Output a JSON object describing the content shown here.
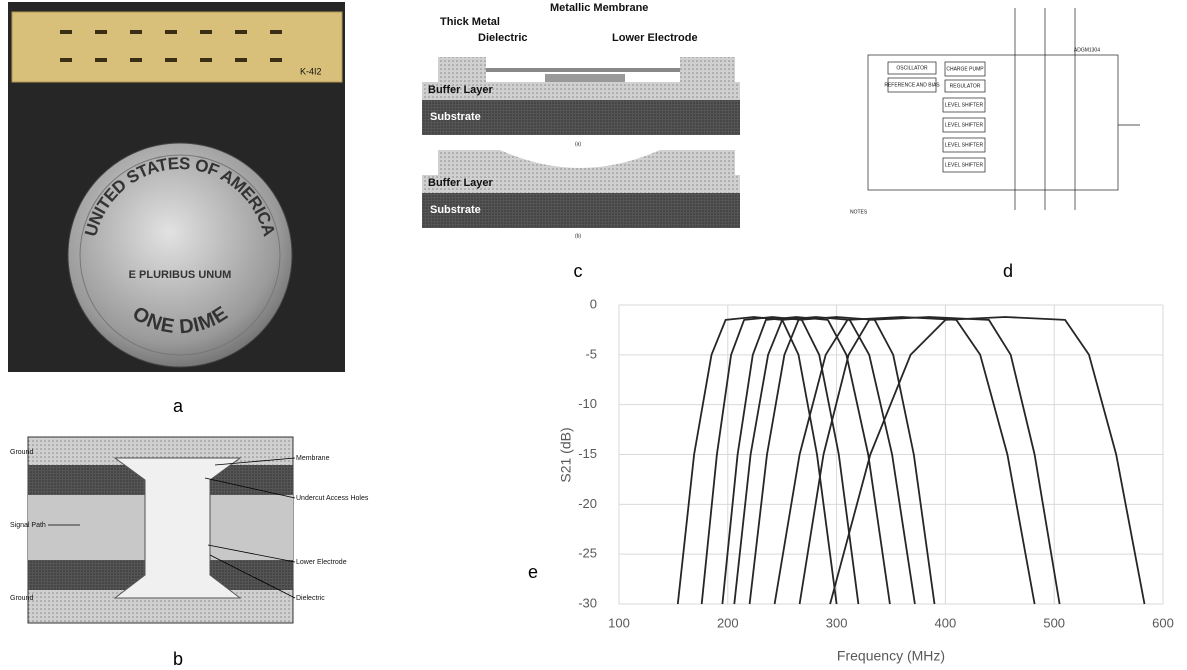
{
  "panels": {
    "a": {
      "label": "a",
      "chip_text": "K-4I2",
      "coin_top": "UNITED STATES OF AMERICA",
      "coin_motto": "E PLURIBUS UNUM",
      "coin_bottom": "ONE DIME"
    },
    "b": {
      "label": "b",
      "ground_top": "Ground",
      "signal_path": "Signal Path",
      "ground_bottom": "Ground",
      "membrane": "Membrane",
      "undercut": "Undercut Access Holes",
      "lower_electrode": "Lower Electrode",
      "dielectric": "Dielectric"
    },
    "c": {
      "label": "c",
      "thick_metal": "Thick Metal",
      "metallic_membrane": "Metallic Membrane",
      "dielectric": "Dielectric",
      "lower_electrode": "Lower Electrode",
      "buffer_a": "Buffer Layer",
      "substrate_a": "Substrate",
      "caption_a": "(a)",
      "buffer_b": "Buffer Layer",
      "substrate_b": "Substrate",
      "caption_b": "(b)"
    },
    "d": {
      "label": "d",
      "part": "ADGM1304",
      "oscillator": "OSCILLATOR",
      "charge_pump": "CHARGE PUMP",
      "reference": "REFERENCE AND BIAS",
      "regulator": "REGULATOR",
      "level_shifters": [
        "LEVEL SHIFTER",
        "LEVEL SHIFTER",
        "LEVEL SHIFTER",
        "LEVEL SHIFTER"
      ],
      "notes": "NOTES"
    },
    "e": {
      "label": "e"
    }
  },
  "chart_data": {
    "type": "line",
    "xlabel": "Frequency (MHz)",
    "ylabel": "S21 (dB)",
    "xlim": [
      100,
      600
    ],
    "ylim": [
      -30,
      0
    ],
    "xticks": [
      100,
      200,
      300,
      400,
      500,
      600
    ],
    "yticks": [
      0,
      -5,
      -10,
      -15,
      -20,
      -25,
      -30
    ],
    "grid": true,
    "series": [
      {
        "color": "#262626",
        "x": [
          154,
          169,
          185,
          198,
          224,
          250,
          265,
          282,
          300
        ],
        "values": [
          -30,
          -15,
          -5,
          -1.5,
          -1.2,
          -1.5,
          -5,
          -15,
          -30
        ]
      },
      {
        "color": "#262626",
        "x": [
          176,
          190,
          203,
          215,
          241,
          268,
          284,
          302,
          320
        ],
        "values": [
          -30,
          -15,
          -5,
          -1.5,
          -1.2,
          -1.5,
          -5,
          -15,
          -30
        ]
      },
      {
        "color": "#262626",
        "x": [
          195,
          209,
          223,
          235,
          263,
          292,
          309,
          329,
          349
        ],
        "values": [
          -30,
          -15,
          -5,
          -1.5,
          -1.2,
          -1.5,
          -5,
          -15,
          -30
        ]
      },
      {
        "color": "#262626",
        "x": [
          206,
          221,
          237,
          250,
          281,
          312,
          330,
          351,
          372
        ],
        "values": [
          -30,
          -15,
          -5,
          -1.5,
          -1.2,
          -1.5,
          -5,
          -15,
          -30
        ]
      },
      {
        "color": "#262626",
        "x": [
          220,
          236,
          252,
          265,
          300,
          335,
          352,
          371,
          390
        ],
        "values": [
          -30,
          -15,
          -5,
          -1.5,
          -1.2,
          -1.5,
          -5,
          -15,
          -30
        ]
      },
      {
        "color": "#262626",
        "x": [
          243,
          266,
          290,
          310,
          360,
          410,
          432,
          457,
          482
        ],
        "values": [
          -30,
          -15,
          -5,
          -1.5,
          -1.2,
          -1.5,
          -5,
          -15,
          -30
        ]
      },
      {
        "color": "#262626",
        "x": [
          266,
          288,
          311,
          330,
          385,
          440,
          460,
          482,
          505
        ],
        "values": [
          -30,
          -15,
          -5,
          -1.5,
          -1.2,
          -1.5,
          -5,
          -15,
          -30
        ]
      },
      {
        "color": "#262626",
        "x": [
          294,
          331,
          368,
          400,
          455,
          510,
          532,
          557,
          583
        ],
        "values": [
          -30,
          -15,
          -5,
          -1.5,
          -1.2,
          -1.5,
          -5,
          -15,
          -30
        ]
      }
    ]
  }
}
